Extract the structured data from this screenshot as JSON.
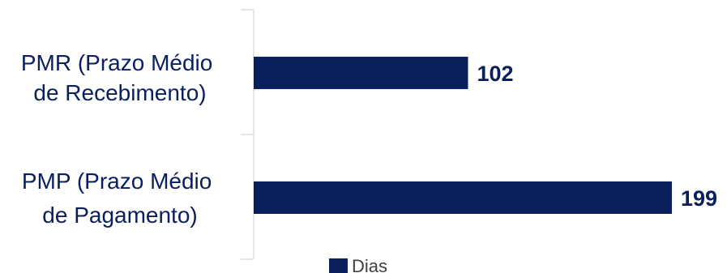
{
  "chart_data": {
    "type": "bar",
    "orientation": "horizontal",
    "categories": [
      "PMR (Prazo Médio de Recebimento)",
      "PMP (Prazo Médio de Pagamento)"
    ],
    "category_lines": [
      [
        "PMR (Prazo Médio",
        "de Recebimento)"
      ],
      [
        "PMP (Prazo Médio",
        "de Pagamento)"
      ]
    ],
    "series": [
      {
        "name": "Dias",
        "values": [
          102,
          199
        ],
        "color": "#0b1f5c"
      }
    ],
    "data_labels": [
      "102",
      "199"
    ],
    "title": "",
    "xlabel": "",
    "ylabel": "",
    "xlim": [
      0,
      199
    ],
    "grid": false,
    "legend": {
      "position": "bottom",
      "entries": [
        "Dias"
      ]
    },
    "colors": {
      "bar": "#0b1f5c",
      "axis": "#d9d9d9",
      "category_text": "#0b1f5c",
      "data_label_text": "#0b1f5c",
      "legend_text": "#404040"
    }
  }
}
